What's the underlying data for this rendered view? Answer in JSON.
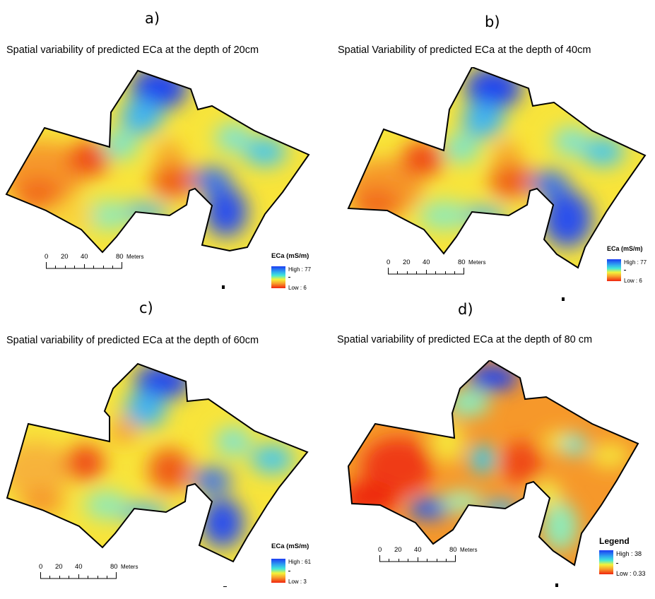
{
  "panels": [
    {
      "label": "a)",
      "title": "Spatial variability of predicted ECa at the depth of 20cm",
      "scalebar": {
        "ticks": [
          "0",
          "20",
          "40",
          "80"
        ],
        "unit": "Meters"
      },
      "legend": {
        "title": "ECa (mS/m)",
        "high": "High : 77",
        "low": "Low : 6"
      },
      "surface": "map-a"
    },
    {
      "label": "b)",
      "title": "Spatial Variability of predicted ECa at the depth of 40cm",
      "scalebar": {
        "ticks": [
          "0",
          "20",
          "40",
          "80"
        ],
        "unit": "Meters"
      },
      "legend": {
        "title": "ECa (mS/m)",
        "high": "High : 77",
        "low": "Low : 6"
      },
      "surface": "map-b"
    },
    {
      "label": "c)",
      "title": "Spatial variability of predicted ECa at the depth of 60cm",
      "scalebar": {
        "ticks": [
          "0",
          "20",
          "40",
          "80"
        ],
        "unit": "Meters"
      },
      "legend": {
        "title": "ECa (mS/m)",
        "high": "High : 61",
        "low": "Low : 3"
      },
      "surface": "map-c"
    },
    {
      "label": "d)",
      "title": "Spatial variability of predicted ECa at the depth of 80 cm",
      "scalebar": {
        "ticks": [
          "0",
          "20",
          "40",
          "80"
        ],
        "unit": "Meters"
      },
      "legend": {
        "title": "Legend",
        "high": "High : 38",
        "low": "Low : 0.33"
      },
      "surface": "map-d"
    }
  ],
  "colors": {
    "high": "#1b3cf2",
    "mid": "#43e8d8",
    "mid_low": "#f4f33a",
    "low": "#f0240f",
    "boundary": "#000000"
  }
}
